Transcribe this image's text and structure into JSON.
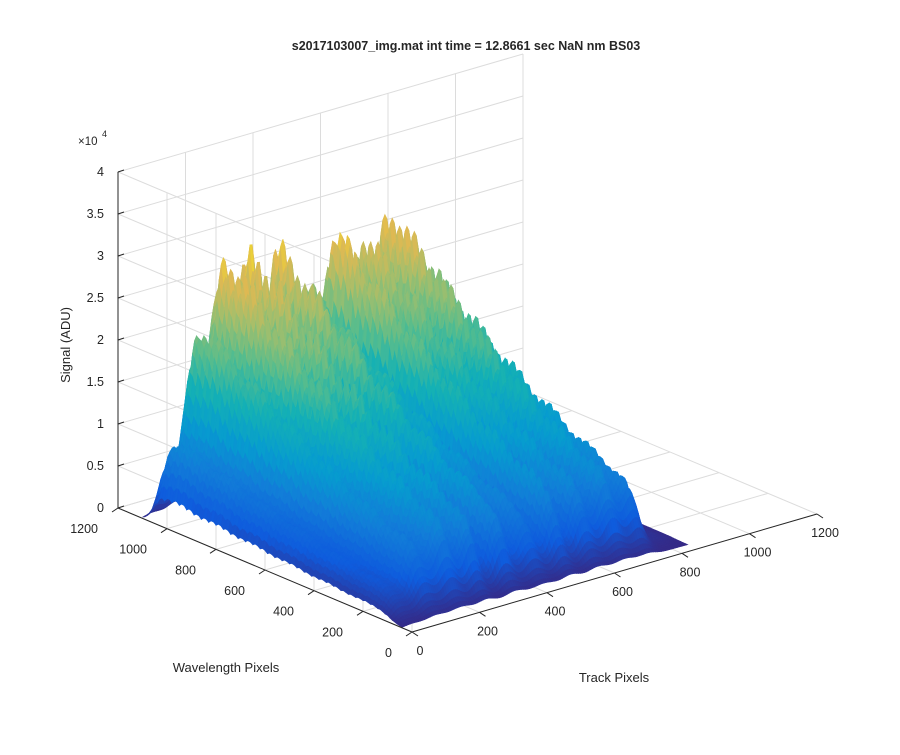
{
  "chart_data": {
    "type": "surface3d",
    "title": "s2017103007_img.mat int time = 12.8661 sec  NaN nm BS03",
    "xlabel": "Track Pixels",
    "ylabel": "Wavelength Pixels",
    "zlabel": "Signal (ADU)",
    "z_exponent_label": "×10",
    "z_exponent_power": "4",
    "x_range": [
      0,
      1200
    ],
    "y_range": [
      0,
      1200
    ],
    "z_range": [
      0,
      4
    ],
    "x_ticks": [
      "0",
      "200",
      "400",
      "600",
      "800",
      "1000",
      "1200"
    ],
    "y_ticks": [
      "0",
      "200",
      "400",
      "600",
      "800",
      "1000",
      "1200"
    ],
    "z_ticks": [
      "0",
      "0.5",
      "1",
      "1.5",
      "2",
      "2.5",
      "3",
      "3.5",
      "4"
    ],
    "colormap": "parula",
    "grid": true,
    "tracks": [
      {
        "track": 30,
        "peak": 0.97
      },
      {
        "track": 100,
        "peak": 2.25
      },
      {
        "track": 175,
        "peak": 3.05
      },
      {
        "track": 250,
        "peak": 3.0
      },
      {
        "track": 335,
        "peak": 3.0
      },
      {
        "track": 420,
        "peak": 2.45
      },
      {
        "track": 500,
        "peak": 3.0
      },
      {
        "track": 580,
        "peak": 2.85
      },
      {
        "track": 660,
        "peak": 3.05
      },
      {
        "track": 730,
        "peak": 2.45
      },
      {
        "track": 800,
        "peak": 0.2
      }
    ]
  }
}
